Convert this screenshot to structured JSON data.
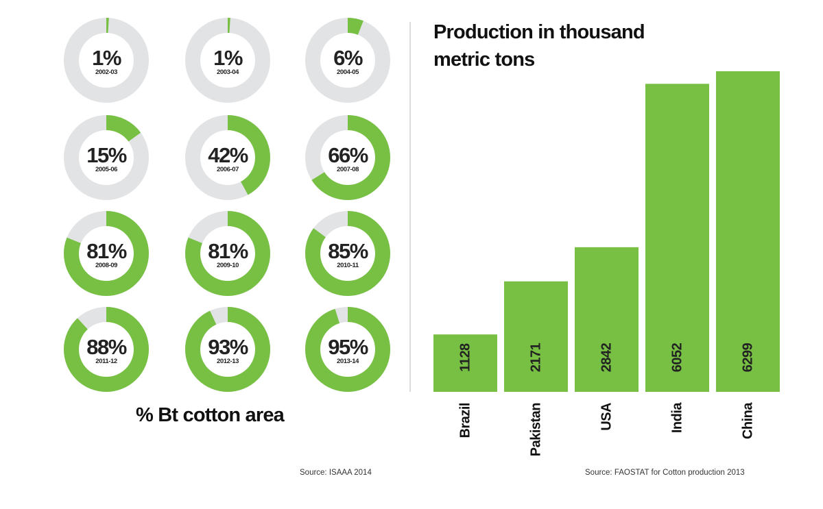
{
  "chart_data": [
    {
      "type": "donut",
      "categories": [
        "2002-03",
        "2003-04",
        "2004-05",
        "2005-06",
        "2006-07",
        "2007-08",
        "2008-09",
        "2009-10",
        "2010-11",
        "2011-12",
        "2012-13",
        "2013-14"
      ],
      "labels": [
        "1%",
        "1%",
        "6%",
        "15%",
        "42%",
        "66%",
        "81%",
        "81%",
        "85%",
        "88%",
        "93%",
        "95%"
      ],
      "values": [
        1,
        1,
        6,
        15,
        42,
        66,
        81,
        81,
        85,
        88,
        93,
        95
      ],
      "caption": "% Bt cotton area",
      "source": "Source: ISAAA 2014",
      "colors": {
        "fill": "#77c043",
        "track": "#e2e3e4"
      }
    },
    {
      "type": "bar",
      "title_lines": [
        "Production in thousand",
        "metric tons"
      ],
      "categories": [
        "Brazil",
        "Pakistan",
        "USA",
        "India",
        "China"
      ],
      "values": [
        1128,
        2171,
        2842,
        6052,
        6299
      ],
      "value_labels": [
        "1128",
        "2171",
        "2842",
        "6052",
        "6299"
      ],
      "ylim": [
        0,
        6299
      ],
      "source": "Source:  FAOSTAT for Cotton production 2013",
      "colors": {
        "bar": "#77c043"
      }
    }
  ],
  "colors": {
    "divider": "#b9b9b9"
  }
}
